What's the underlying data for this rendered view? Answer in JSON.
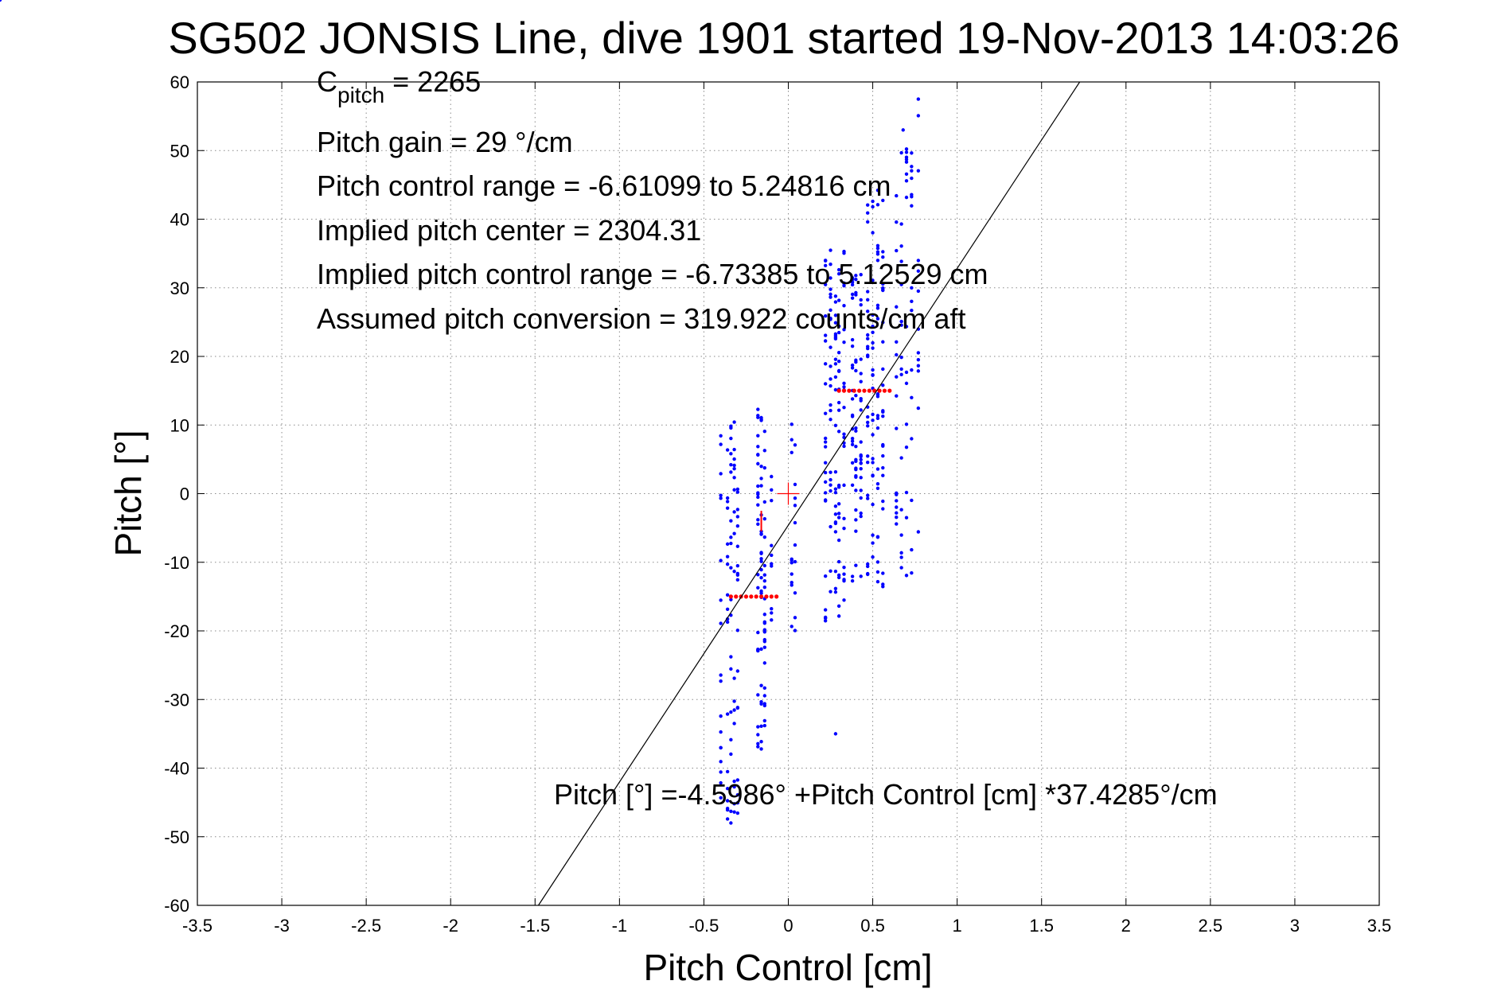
{
  "chart_data": {
    "type": "scatter",
    "title": "SG502 JONSIS Line, dive 1901 started 19-Nov-2013 14:03:26",
    "xlabel": "Pitch Control [cm]",
    "ylabel": "Pitch [°]",
    "xlim": [
      -3.5,
      3.5
    ],
    "ylim": [
      -60,
      60
    ],
    "xticks": [
      -3.5,
      -3,
      -2.5,
      -2,
      -1.5,
      -1,
      -0.5,
      0,
      0.5,
      1,
      1.5,
      2,
      2.5,
      3,
      3.5
    ],
    "xtick_labels": [
      "-3.5",
      "-3",
      "-2.5",
      "-2",
      "-1.5",
      "-1",
      "-0.5",
      "0",
      "0.5",
      "1",
      "1.5",
      "2",
      "2.5",
      "3",
      "3.5"
    ],
    "yticks": [
      -60,
      -50,
      -40,
      -30,
      -20,
      -10,
      0,
      10,
      20,
      30,
      40,
      50,
      60
    ],
    "ytick_labels": [
      "-60",
      "-50",
      "-40",
      "-30",
      "-20",
      "-10",
      "0",
      "10",
      "20",
      "30",
      "40",
      "50",
      "60"
    ],
    "grid": true,
    "annotations": {
      "c_pitch_main": "C",
      "c_pitch_sub": "pitch",
      "c_pitch_value": " = 2265",
      "lines": [
        "Pitch gain = 29 °/cm",
        "Pitch control range = -6.61099 to 5.24816 cm",
        "Implied pitch center = 2304.31",
        "Implied pitch control range = -6.73385 to 5.12529 cm",
        "Assumed pitch conversion = 319.922 counts/cm aft"
      ],
      "fit_equation": "Pitch [°] =-4.5986° +Pitch Control [cm] *37.4285°/cm"
    },
    "fit_line": {
      "intercept": -4.5986,
      "slope": 37.4285,
      "color": "#000000"
    },
    "center_marker": {
      "x": 0,
      "y": 0,
      "color": "#ff0000"
    },
    "series_points": {
      "color": "#0000ff",
      "clusters": [
        {
          "xs": [
            -0.4,
            -0.36,
            -0.34,
            -0.32,
            -0.3
          ],
          "ymin": -48,
          "ymax": 10.5,
          "n": 18,
          "seed": 11
        },
        {
          "xs": [
            -0.18,
            -0.16,
            -0.14
          ],
          "ymin": -38,
          "ymax": 12.5,
          "n": 26,
          "seed": 23
        },
        {
          "xs": [
            -0.1,
            0.02,
            0.04
          ],
          "ymin": -20,
          "ymax": 10.5,
          "n": 10,
          "seed": 31
        },
        {
          "xs": [
            0.22,
            0.25,
            0.28,
            0.3,
            0.33
          ],
          "ymin": -19,
          "ymax": 36,
          "n": 24,
          "seed": 41
        },
        {
          "xs": [
            0.38,
            0.4,
            0.43
          ],
          "ymin": -13,
          "ymax": 33,
          "n": 22,
          "seed": 53
        },
        {
          "xs": [
            0.47,
            0.5,
            0.53,
            0.56
          ],
          "ymin": -14.5,
          "ymax": 45,
          "n": 24,
          "seed": 67
        },
        {
          "xs": [
            0.64,
            0.67,
            0.7,
            0.73
          ],
          "ymin": -12.5,
          "ymax": 53,
          "n": 16,
          "seed": 79
        },
        {
          "xs": [
            0.77
          ],
          "ymin": -10,
          "ymax": 58,
          "n": 12,
          "seed": 97
        }
      ],
      "extra": [
        [
          0.28,
          -35.0
        ],
        [
          0.77,
          57.5
        ],
        [
          0.68,
          53.0
        ],
        0,
        [
          -0.34,
          -48.0
        ]
      ]
    },
    "bin_means": {
      "color": "#ff0000",
      "groups": [
        {
          "y": -15,
          "xs": [
            -0.34,
            -0.31,
            -0.28,
            -0.25,
            -0.22,
            -0.19,
            -0.16,
            -0.13,
            -0.1,
            -0.07
          ]
        },
        {
          "y": 15,
          "xs": [
            0.3,
            0.33,
            0.36,
            0.39,
            0.42,
            0.45,
            0.48,
            0.51,
            0.54,
            0.57,
            0.6
          ]
        }
      ],
      "vertical_segment": {
        "x": -0.16,
        "y1": -5.5,
        "y2": -2.5
      }
    }
  }
}
